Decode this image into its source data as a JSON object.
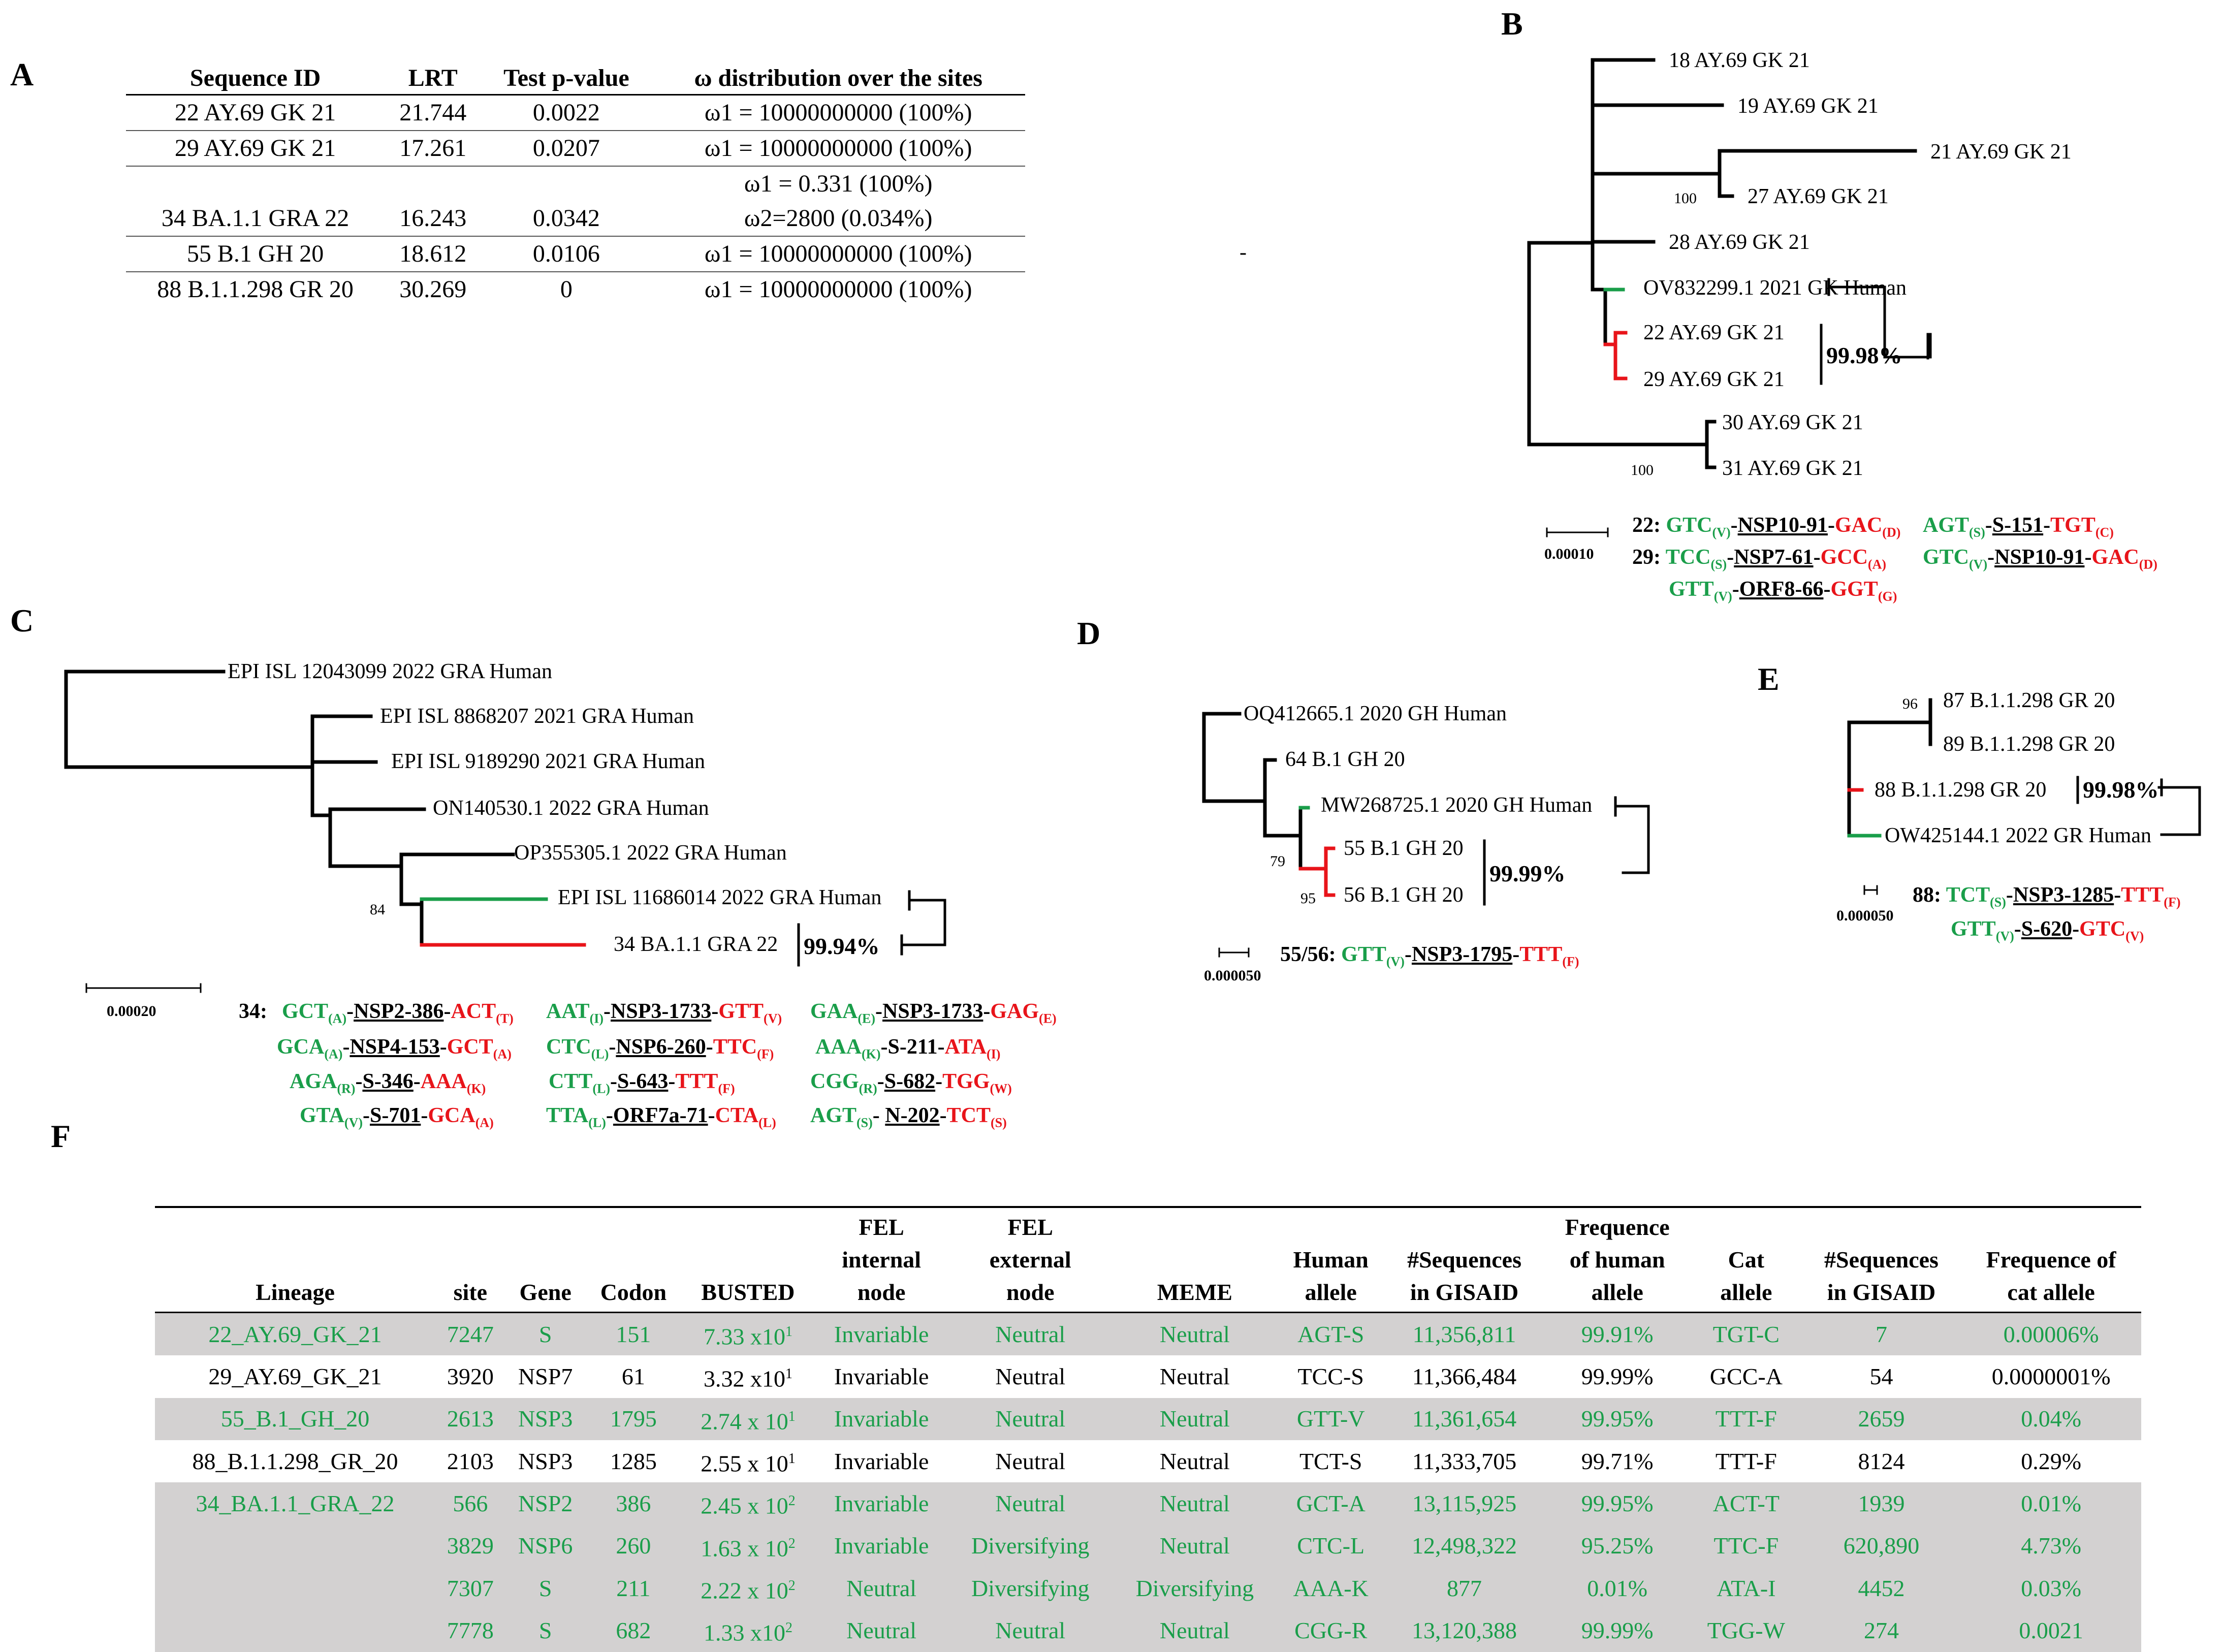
{
  "panels": {
    "a": "A",
    "b": "B",
    "c": "C",
    "d": "D",
    "e": "E",
    "f": "F"
  },
  "tableA": {
    "headers": [
      "Sequence ID",
      "LRT",
      "Test p-value",
      "ω distribution over the sites"
    ],
    "rows": [
      {
        "id": "22 AY.69 GK 21",
        "lrt": "21.744",
        "p": "0.0022",
        "w1": "ω1 = 10000000000 (100%)",
        "w2": ""
      },
      {
        "id": "29 AY.69 GK 21",
        "lrt": "17.261",
        "p": "0.0207",
        "w1": "ω1 = 10000000000 (100%)",
        "w2": ""
      },
      {
        "id": "34 BA.1.1 GRA 22",
        "lrt": "16.243",
        "p": "0.0342",
        "w1": "ω1 = 0.331 (100%)",
        "w2": "ω2=2800 (0.034%)"
      },
      {
        "id": "55 B.1 GH 20",
        "lrt": "18.612",
        "p": "0.0106",
        "w1": "ω1 = 10000000000 (100%)",
        "w2": ""
      },
      {
        "id": "88 B.1.1.298 GR 20",
        "lrt": "30.269",
        "p": "0",
        "w1": "ω1 = 10000000000 (100%)",
        "w2": ""
      }
    ]
  },
  "treeB": {
    "leaves": [
      "18 AY.69 GK 21",
      "19 AY.69 GK 21",
      "21 AY.69 GK 21",
      "27 AY.69 GK 21",
      "28 AY.69 GK 21",
      "OV832299.1 2021 GK Human",
      "22 AY.69 GK 21",
      "29 AY.69 GK 21",
      "30 AY.69 GK 21",
      "31 AY.69 GK 21"
    ],
    "bootstrap": [
      "100",
      "100"
    ],
    "identity": "99.98%",
    "scale": "0.00010",
    "dot": "-",
    "mutations": [
      {
        "id": "22:",
        "a_codon": "GTC",
        "a_aa": "(V)",
        "site": "NSP10-91",
        "b_codon": "GAC",
        "b_aa": "(D)"
      },
      {
        "id": "",
        "a_codon": "AGT",
        "a_aa": "(S)",
        "site": "S-151",
        "b_codon": "TGT",
        "b_aa": "(C)"
      },
      {
        "id": "29:",
        "a_codon": "TCC",
        "a_aa": "(S)",
        "site": "NSP7-61",
        "b_codon": "GCC",
        "b_aa": "(A)"
      },
      {
        "id": "",
        "a_codon": "GTC",
        "a_aa": "(V)",
        "site": "NSP10-91",
        "b_codon": "GAC",
        "b_aa": "(D)"
      },
      {
        "id": "",
        "a_codon": "GTT",
        "a_aa": "(V)",
        "site": "ORF8-66",
        "b_codon": "GGT",
        "b_aa": "(G)"
      }
    ]
  },
  "treeC": {
    "leaves": [
      "EPI ISL 12043099 2022 GRA Human",
      "EPI ISL 8868207 2021 GRA Human",
      "EPI ISL 9189290 2021 GRA Human",
      "ON140530.1 2022 GRA Human",
      "OP355305.1 2022 GRA Human",
      "EPI ISL 11686014 2022 GRA Human",
      "34 BA.1.1 GRA 22"
    ],
    "bootstrap": "84",
    "identity": "99.94%",
    "scale": "0.00020",
    "mutations_id": "34:",
    "mutations": [
      {
        "a_codon": "GCT",
        "a_aa": "(A)",
        "site": "NSP2-386",
        "b_codon": "ACT",
        "b_aa": "(T)"
      },
      {
        "a_codon": "AAT",
        "a_aa": "(I)",
        "site": "NSP3-1733",
        "b_codon": "GTT",
        "b_aa": "(V)"
      },
      {
        "a_codon": "GAA",
        "a_aa": "(E)",
        "site": "NSP3-1733",
        "b_codon": "GAG",
        "b_aa": "(E)"
      },
      {
        "a_codon": "GCA",
        "a_aa": "(A)",
        "site": "NSP4-153",
        "b_codon": "GCT",
        "b_aa": "(A)"
      },
      {
        "a_codon": "CTC",
        "a_aa": "(L)",
        "site": "NSP6-260",
        "b_codon": "TTC",
        "b_aa": "(F)"
      },
      {
        "a_codon": "AAA",
        "a_aa": "(K)",
        "site": "S-211",
        "b_codon": "ATA",
        "b_aa": "(I)"
      },
      {
        "a_codon": "AGA",
        "a_aa": "(R)",
        "site": "S-346",
        "b_codon": "AAA",
        "b_aa": "(K)"
      },
      {
        "a_codon": "CTT",
        "a_aa": "(L)",
        "site": "S-643",
        "b_codon": "TTT",
        "b_aa": "(F)"
      },
      {
        "a_codon": "CGG",
        "a_aa": "(R)",
        "site": "S-682",
        "b_codon": "TGG",
        "b_aa": "(W)"
      },
      {
        "a_codon": "GTA",
        "a_aa": "(V)",
        "site": "S-701",
        "b_codon": "GCA",
        "b_aa": "(A)"
      },
      {
        "a_codon": "TTA",
        "a_aa": "(L)",
        "site": "ORF7a-71",
        "b_codon": "CTA",
        "b_aa": "(L)"
      },
      {
        "a_codon": "AGT",
        "a_aa": "(S)",
        "site": "N-202",
        "b_codon": "TCT",
        "b_aa": "(S)"
      }
    ]
  },
  "treeD": {
    "leaves": [
      "OQ412665.1 2020 GH Human",
      "64 B.1 GH 20",
      "MW268725.1 2020 GH Human",
      "55 B.1 GH 20",
      "56 B.1 GH 20"
    ],
    "bootstrap": [
      "79",
      "95"
    ],
    "identity": "99.99%",
    "scale": "0.000050",
    "mutations": [
      {
        "id": "55/56:",
        "a_codon": "GTT",
        "a_aa": "(V)",
        "site": "NSP3-1795",
        "b_codon": "TTT",
        "b_aa": "(F)"
      }
    ]
  },
  "treeE": {
    "leaves": [
      "87 B.1.1.298 GR 20",
      "89 B.1.1.298 GR 20",
      "88 B.1.1.298 GR 20",
      "OW425144.1 2022 GR Human"
    ],
    "bootstrap": "96",
    "identity": "99.98%",
    "scale": "0.000050",
    "mutations": [
      {
        "id": "88:",
        "a_codon": "TCT",
        "a_aa": "(S)",
        "site": "NSP3-1285",
        "b_codon": "TTT",
        "b_aa": "(F)"
      },
      {
        "id": "",
        "a_codon": "GTT",
        "a_aa": "(V)",
        "site": "S-620",
        "b_codon": "GTC",
        "b_aa": "(V)"
      }
    ]
  },
  "tableF": {
    "headers": [
      [
        "Lineage"
      ],
      [
        "site"
      ],
      [
        "Gene"
      ],
      [
        "Codon"
      ],
      [
        "BUSTED"
      ],
      [
        "FEL",
        "internal",
        "node"
      ],
      [
        "FEL",
        "external",
        "node"
      ],
      [
        "MEME"
      ],
      [
        "Human",
        "allele"
      ],
      [
        "#Sequences",
        "in GISAID"
      ],
      [
        "Frequence",
        "of human",
        "allele"
      ],
      [
        "Cat",
        "allele"
      ],
      [
        "#Sequences",
        "in GISAID"
      ],
      [
        "Frequence of",
        "cat allele"
      ]
    ],
    "rows": [
      {
        "shade": "g",
        "c": [
          "22_AY.69_GK_21",
          "7247",
          "S",
          "151",
          "7.33 x10",
          "Invariable",
          "Neutral",
          "Neutral",
          "AGT-S",
          "11,356,811",
          "99.91%",
          "TGT-C",
          "7",
          "0.00006%"
        ],
        "exp": "1"
      },
      {
        "shade": "w",
        "c": [
          "29_AY.69_GK_21",
          "3920",
          "NSP7",
          "61",
          "3.32 x10",
          "Invariable",
          "Neutral",
          "Neutral",
          "TCC-S",
          "11,366,484",
          "99.99%",
          "GCC-A",
          "54",
          "0.0000001%"
        ],
        "exp": "1"
      },
      {
        "shade": "g",
        "c": [
          "55_B.1_GH_20",
          "2613",
          "NSP3",
          "1795",
          "2.74 x 10",
          "Invariable",
          "Neutral",
          "Neutral",
          "GTT-V",
          "11,361,654",
          "99.95%",
          "TTT-F",
          "2659",
          "0.04%"
        ],
        "exp": "1"
      },
      {
        "shade": "w",
        "c": [
          "88_B.1.1.298_GR_20",
          "2103",
          "NSP3",
          "1285",
          "2.55 x 10",
          "Invariable",
          "Neutral",
          "Neutral",
          "TCT-S",
          "11,333,705",
          "99.71%",
          "TTT-F",
          "8124",
          "0.29%"
        ],
        "exp": "1"
      },
      {
        "shade": "g",
        "c": [
          "34_BA.1.1_GRA_22",
          "566",
          "NSP2",
          "386",
          "2.45 x 10",
          "Invariable",
          "Neutral",
          "Neutral",
          "GCT-A",
          "13,115,925",
          "99.95%",
          "ACT-T",
          "1939",
          "0.01%"
        ],
        "exp": "2"
      },
      {
        "shade": "g",
        "c": [
          "",
          "3829",
          "NSP6",
          "260",
          "1.63 x 10",
          "Invariable",
          "Diversifying",
          "Neutral",
          "CTC-L",
          "12,498,322",
          "95.25%",
          "TTC-F",
          "620,890",
          "4.73%"
        ],
        "exp": "2"
      },
      {
        "shade": "g",
        "c": [
          "",
          "7307",
          "S",
          "211",
          "2.22 x 10",
          "Neutral",
          "Diversifying",
          "Diversifying",
          "AAA-K",
          "877",
          "0.01%",
          "ATA-I",
          "4452",
          "0.03%"
        ],
        "exp": "2"
      },
      {
        "shade": "g",
        "c": [
          "",
          "7778",
          "S",
          "682",
          "1.33 x10",
          "Neutral",
          "Neutral",
          "Neutral",
          "CGG-R",
          "13,120,388",
          "99.99%",
          "TGG-W",
          "274",
          "0.0021"
        ],
        "exp": "2"
      }
    ]
  }
}
